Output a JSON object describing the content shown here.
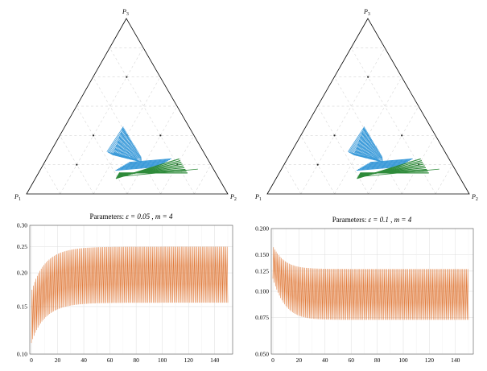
{
  "chart_data": [
    {
      "type": "ternary",
      "vertices": {
        "top": "P",
        "top_sub": "3",
        "left": "P",
        "left_sub": "1",
        "right": "P",
        "right_sub": "2"
      },
      "colors": {
        "blue": "#3a9ad9",
        "green": "#2e8b3a"
      },
      "grid": true,
      "epsilon": 0.05,
      "m": 4
    },
    {
      "type": "ternary",
      "vertices": {
        "top": "P",
        "top_sub": "3",
        "left": "P",
        "left_sub": "1",
        "right": "P",
        "right_sub": "2"
      },
      "colors": {
        "blue": "#3a9ad9",
        "green": "#2e8b3a"
      },
      "grid": true,
      "epsilon": 0.1,
      "m": 4
    },
    {
      "type": "line",
      "title_prefix": "Parameters: ",
      "title_eps": "ε = 0.05",
      "title_sep": " , ",
      "title_m": "m = 4",
      "x": {
        "min": 0,
        "max": 150,
        "ticks": [
          0,
          20,
          40,
          60,
          80,
          100,
          120,
          140
        ]
      },
      "ylim": [
        0.1,
        0.3
      ],
      "yscale": "log",
      "yticks": [
        "0.10",
        "0.15",
        "0.20",
        "0.25",
        "0.30"
      ],
      "ytick_values": [
        0.1,
        0.15,
        0.2,
        0.25,
        0.3
      ],
      "grid": true,
      "color": "#e07a3a",
      "envelope": {
        "upper_start": 0.17,
        "upper_end": 0.25,
        "lower_start": 0.11,
        "lower_end": 0.155,
        "tau": 12
      }
    },
    {
      "type": "line",
      "title_prefix": "Parameters: ",
      "title_eps": "ε = 0.1",
      "title_sep": " , ",
      "title_m": "m = 4",
      "x": {
        "min": 0,
        "max": 150,
        "ticks": [
          0,
          20,
          40,
          60,
          80,
          100,
          120,
          140
        ]
      },
      "ylim": [
        0.05,
        0.2
      ],
      "yscale": "log",
      "yticks": [
        "0.050",
        "0.075",
        "0.100",
        "0.125",
        "0.150",
        "0.200"
      ],
      "ytick_values": [
        0.05,
        0.075,
        0.1,
        0.125,
        0.15,
        0.2
      ],
      "grid": true,
      "color": "#e07a3a",
      "envelope": {
        "upper_start": 0.165,
        "upper_end": 0.128,
        "lower_start": 0.115,
        "lower_end": 0.073,
        "tau": 8
      }
    }
  ]
}
